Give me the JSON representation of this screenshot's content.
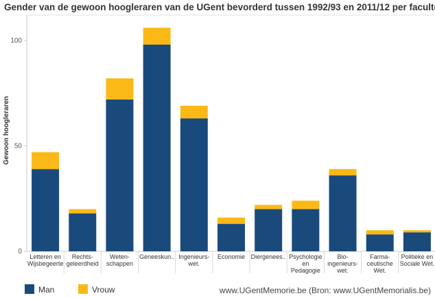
{
  "title": "Gender van de gewoon hoogleraren van de UGent bevorderd tussen 1992/93 en 2011/12 per faculteit",
  "credit": "www.UGentMemorie.be (Bron: www.UGentMemorialis.be)",
  "chart_data": {
    "type": "bar",
    "stacked": true,
    "ylabel": "Gewoon hoogleraren",
    "ylim": [
      0,
      112
    ],
    "yticks": [
      0,
      50,
      100
    ],
    "grid": false,
    "legend_position": "bottom-left",
    "categories": [
      [
        "Letteren en",
        "Wijsbegeerte"
      ],
      [
        "Rechts-",
        "geleerdheid"
      ],
      [
        "Weten-",
        "schappen"
      ],
      [
        "Geneeskun.."
      ],
      [
        "Ingenieurs-",
        "wet."
      ],
      [
        "Economie"
      ],
      [
        "Diergenees.."
      ],
      [
        "Psychologie",
        "en",
        "Pedagogie"
      ],
      [
        "Bio-",
        "ingenieurs-",
        "wet."
      ],
      [
        "Farma-",
        "ceutische",
        "Wet."
      ],
      [
        "Politieke en",
        "Sociale Wet."
      ]
    ],
    "series": [
      {
        "name": "Man",
        "color": "#1a4a7c",
        "values": [
          39,
          18,
          72,
          98,
          63,
          13,
          20,
          20,
          36,
          8,
          9
        ]
      },
      {
        "name": "Vrouw",
        "color": "#fbb917",
        "values": [
          8,
          2,
          10,
          8,
          6,
          3,
          2,
          4,
          3,
          2,
          1
        ]
      }
    ]
  }
}
